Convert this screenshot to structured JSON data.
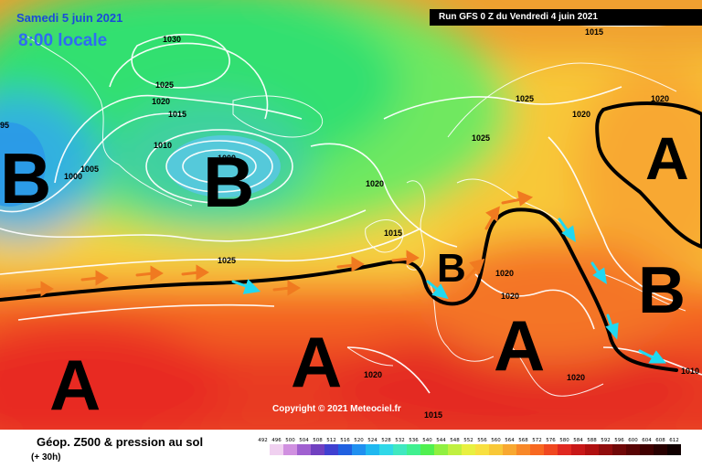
{
  "header": {
    "date": "Samedi 5 juin 2021",
    "time": "8:00 locale",
    "run": "Run GFS 0 Z du Vendredi 4 juin 2021"
  },
  "copyright": "Copyright © 2021 Meteociel.fr",
  "legend": {
    "title": "Géop. Z500 & pression au sol",
    "subtitle": "(+ 30h)",
    "ticks": [
      "492",
      "496",
      "500",
      "504",
      "508",
      "512",
      "516",
      "520",
      "524",
      "528",
      "532",
      "536",
      "540",
      "544",
      "548",
      "552",
      "556",
      "560",
      "564",
      "568",
      "572",
      "576",
      "580",
      "584",
      "588",
      "592",
      "596",
      "600",
      "604",
      "608",
      "612"
    ],
    "colors": [
      "#ffffff",
      "#f0d0f0",
      "#d090e0",
      "#a060d0",
      "#7040c0",
      "#4040d0",
      "#2060e0",
      "#2090f0",
      "#20b8f0",
      "#30d8e8",
      "#40e8c0",
      "#40f090",
      "#50f050",
      "#90f040",
      "#c0f040",
      "#e8f040",
      "#f8e040",
      "#f8c838",
      "#f8a830",
      "#f88828",
      "#f86820",
      "#f04820",
      "#e02820",
      "#c81818",
      "#b01010",
      "#900c0c",
      "#700808",
      "#580404",
      "#400000",
      "#280000",
      "#100000"
    ]
  },
  "systems": [
    {
      "label": "B",
      "kind": "low"
    },
    {
      "label": "B",
      "kind": "low"
    },
    {
      "label": "B",
      "kind": "low"
    },
    {
      "label": "B",
      "kind": "low"
    },
    {
      "label": "A",
      "kind": "high"
    },
    {
      "label": "A",
      "kind": "high"
    },
    {
      "label": "A",
      "kind": "high"
    },
    {
      "label": "A",
      "kind": "high"
    }
  ],
  "isobars": [
    "1030",
    "1025",
    "1020",
    "1015",
    "1010",
    "1005",
    "1000",
    "95",
    "1025",
    "1020",
    "1015",
    "1020",
    "1025",
    "1020",
    "1025",
    "1020",
    "1020",
    "1020",
    "1020",
    "1015",
    "1015",
    "1010",
    "1000"
  ],
  "colors": {
    "jet_line": "#000000",
    "arrow_strong": "#f07a20",
    "arrow_weak": "#20d8f0",
    "isobar": "#ffffff",
    "coast": "#ffffff"
  }
}
